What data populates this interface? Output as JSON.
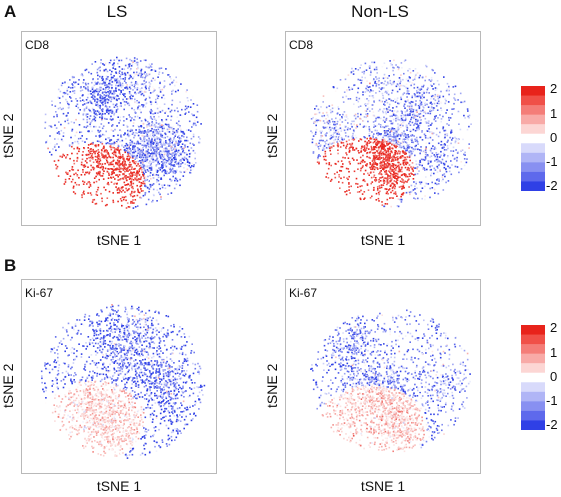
{
  "panels": [
    {
      "letter": "A",
      "marker": "CD8"
    },
    {
      "letter": "B",
      "marker": "Ki-67"
    }
  ],
  "column_titles": [
    "LS",
    "Non-LS"
  ],
  "axis_labels": {
    "x": "tSNE 1",
    "y": "tSNE 2"
  },
  "colorbar": {
    "ticks": [
      "2",
      "1",
      "0",
      "-1",
      "-2"
    ],
    "range": [
      -2,
      2
    ],
    "colors": [
      "#e8231b",
      "#f05048",
      "#f47d78",
      "#f8aaa7",
      "#fcd6d4",
      "#ffffff",
      "#d8dafb",
      "#b0b5f6",
      "#8890f1",
      "#5e69ec",
      "#2f40e6"
    ]
  },
  "chart_data": [
    {
      "type": "scatter",
      "row": "A",
      "column": "LS",
      "title": "CD8",
      "xlabel": "tSNE 1",
      "ylabel": "tSNE 2",
      "colorscale_range": [
        -2,
        2
      ],
      "description_values": {
        "high_cluster_mean": 1.8,
        "other_mean": -1.3
      }
    },
    {
      "type": "scatter",
      "row": "A",
      "column": "Non-LS",
      "title": "CD8",
      "xlabel": "tSNE 1",
      "ylabel": "tSNE 2",
      "colorscale_range": [
        -2,
        2
      ],
      "description_values": {
        "high_cluster_mean": 1.8,
        "other_mean": -1.1
      }
    },
    {
      "type": "scatter",
      "row": "B",
      "column": "LS",
      "title": "Ki-67",
      "xlabel": "tSNE 1",
      "ylabel": "tSNE 2",
      "colorscale_range": [
        -2,
        2
      ],
      "description_values": {
        "high_cluster_mean": 0.4,
        "other_mean": -1.3
      }
    },
    {
      "type": "scatter",
      "row": "B",
      "column": "Non-LS",
      "title": "Ki-67",
      "xlabel": "tSNE 1",
      "ylabel": "tSNE 2",
      "colorscale_range": [
        -2,
        2
      ],
      "description_values": {
        "high_cluster_mean": 0.5,
        "other_mean": -1.0
      }
    }
  ]
}
